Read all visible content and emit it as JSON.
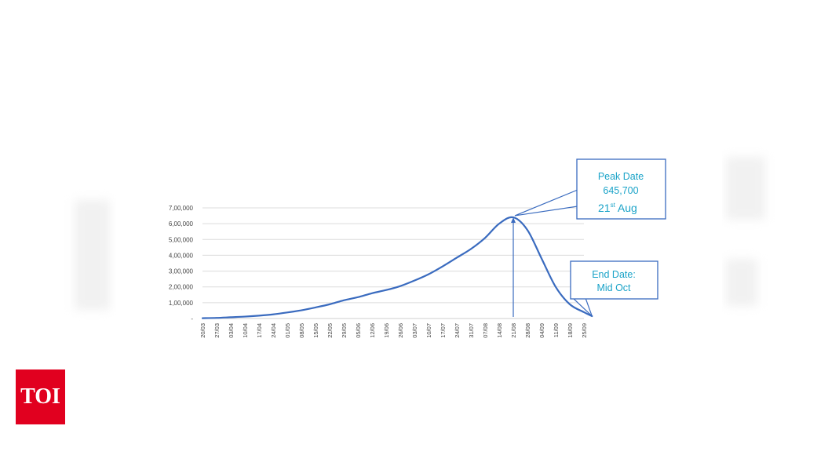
{
  "logo": {
    "text": "TOI",
    "color": "#e1001f"
  },
  "chart_data": {
    "type": "line",
    "title": "",
    "xlabel": "",
    "ylabel": "",
    "ylim": [
      0,
      700000
    ],
    "y_ticks": [
      "-",
      "1,00,000",
      "2,00,000",
      "3,00,000",
      "4,00,000",
      "5,00,000",
      "6,00,000",
      "7,00,000"
    ],
    "y_tick_values": [
      0,
      100000,
      200000,
      300000,
      400000,
      500000,
      600000,
      700000
    ],
    "x_ticks": [
      "20/03",
      "27/03",
      "03/04",
      "10/04",
      "17/04",
      "24/04",
      "01/05",
      "08/05",
      "15/05",
      "22/05",
      "29/05",
      "05/06",
      "12/06",
      "19/06",
      "26/06",
      "03/07",
      "10/07",
      "17/07",
      "24/07",
      "31/07",
      "07/08",
      "14/08",
      "21/08",
      "28/08",
      "04/09",
      "11/09",
      "18/09",
      "25/09"
    ],
    "grid": true,
    "line_color": "#3a6bbf",
    "series": [
      {
        "x": [
          "20/03",
          "27/03",
          "03/04",
          "10/04",
          "17/04",
          "24/04",
          "01/05",
          "08/05",
          "15/05",
          "22/05",
          "29/05",
          "05/06",
          "12/06",
          "19/06",
          "26/06",
          "03/07",
          "10/07",
          "17/07",
          "24/07",
          "31/07",
          "07/08",
          "14/08",
          "21/08",
          "28/08",
          "04/09",
          "11/09",
          "18/09",
          "25/09",
          "29/09"
        ],
        "values": [
          2000,
          4000,
          8000,
          12000,
          18000,
          26000,
          38000,
          52000,
          70000,
          90000,
          115000,
          135000,
          160000,
          180000,
          205000,
          240000,
          280000,
          330000,
          385000,
          440000,
          510000,
          600000,
          640000,
          560000,
          380000,
          200000,
          90000,
          40000,
          15000
        ]
      }
    ],
    "peak_callout": {
      "line1": "Peak Date",
      "line2": "645,700",
      "line3": "21",
      "line3_sup": "st",
      "line3_rest": " Aug",
      "x": "21/08",
      "value": 645700
    },
    "end_callout": {
      "line1": "End Date:",
      "line2": "Mid Oct"
    },
    "callout_color": "#1aa3c8",
    "callout_border": "#3a6bbf"
  }
}
